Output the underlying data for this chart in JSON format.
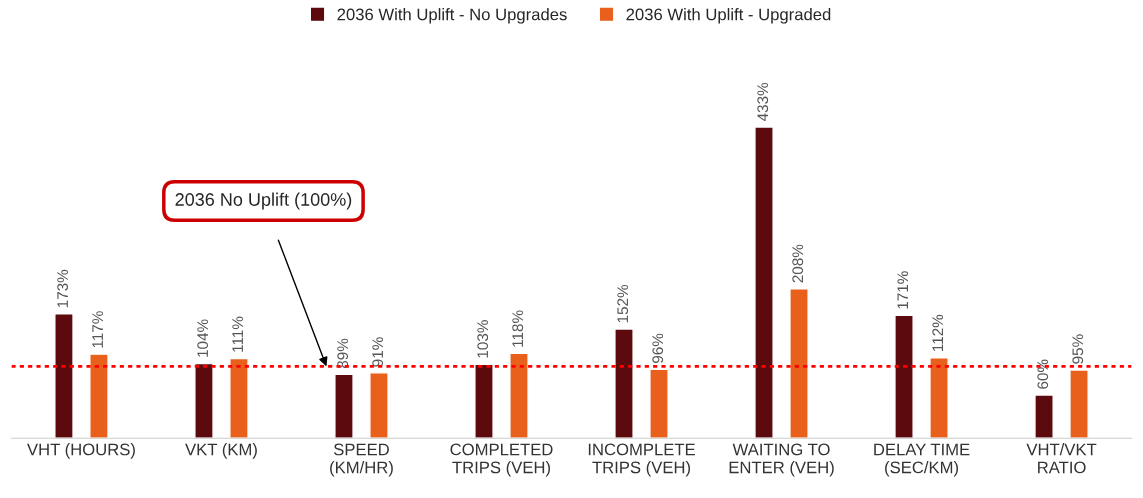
{
  "chart_data": {
    "type": "bar",
    "categories": [
      "VHT (HOURS)",
      "VKT (KM)",
      "SPEED\n(KM/HR)",
      "COMPLETED\nTRIPS (VEH)",
      "INCOMPLETE\nTRIPS (VEH)",
      "WAITING TO\nENTER (VEH)",
      "DELAY TIME\n(SEC/KM)",
      "VHT/VKT\nRATIO"
    ],
    "series": [
      {
        "name": "2036 With Uplift - No Upgrades",
        "color": "#5c0a0e",
        "values": [
          173,
          104,
          89,
          103,
          152,
          433,
          171,
          60
        ],
        "value_labels": [
          "173%",
          "104%",
          "89%",
          "103%",
          "152%",
          "433%",
          "171%",
          "60%"
        ]
      },
      {
        "name": "2036 With Uplift - Upgraded",
        "color": "#e8601c",
        "values": [
          117,
          111,
          91,
          118,
          96,
          208,
          112,
          95
        ],
        "value_labels": [
          "117%",
          "111%",
          "91%",
          "118%",
          "96%",
          "208%",
          "112%",
          "95%"
        ]
      }
    ],
    "annotations": [
      "2036 No Uplift (100%)"
    ],
    "tick_labels": "x",
    "legend": "top",
    "ref_lines": [
      {
        "axis": "y",
        "value": 100,
        "color": "#ff0000",
        "line_style": "dotted"
      }
    ]
  }
}
